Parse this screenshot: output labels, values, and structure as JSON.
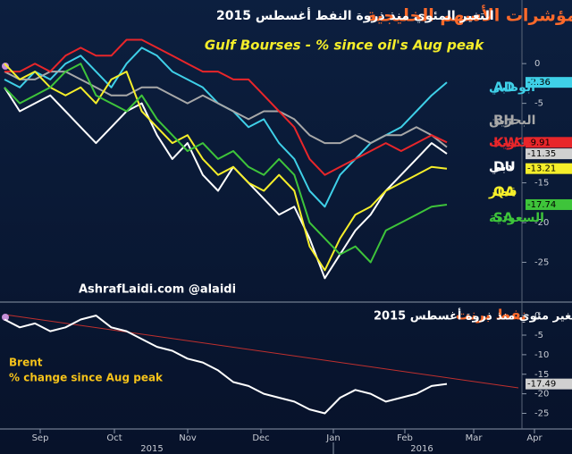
{
  "chart_data": [
    {
      "type": "line",
      "title_highlight": "مؤشرات الأسهم الخليجية",
      "title": "التغير المئوي منذ ذروة النفط أغسطس 2015",
      "subtitle": "Gulf Bourses - % since oil's Aug peak",
      "watermark": "AshrafLaidi.com  @alaidi",
      "ylim": [
        -30,
        8
      ],
      "yticks": [
        0,
        -5,
        -10,
        -15,
        -20,
        -25
      ],
      "grid": false,
      "series": [
        {
          "name": "AD",
          "name_ar": "أبوظبي",
          "color": "#3fd0e8",
          "values": [
            -2,
            -3,
            -1,
            -2,
            0,
            1,
            -1,
            -3,
            0,
            2,
            1,
            -1,
            -2,
            -3,
            -5,
            -6,
            -8,
            -7,
            -10,
            -12,
            -16,
            -18,
            -14,
            -12,
            -10,
            -9,
            -8,
            -6,
            -4,
            -2.36
          ],
          "value_labels": [
            null,
            null,
            null,
            null,
            null,
            null,
            null,
            null,
            null,
            null,
            null,
            null,
            null,
            null,
            null,
            null,
            null,
            null,
            null,
            null,
            null,
            null,
            null,
            null,
            null,
            null,
            null,
            null,
            null,
            "-2.36"
          ]
        },
        {
          "name": "BH",
          "name_ar": "البحرين",
          "color": "#a8a8a8",
          "values": [
            -1,
            -2,
            -2,
            -1,
            -1,
            -2,
            -3,
            -4,
            -4,
            -3,
            -3,
            -4,
            -5,
            -4,
            -5,
            -6,
            -7,
            -6,
            -6,
            -7,
            -9,
            -10,
            -10,
            -9,
            -10,
            -9,
            -9,
            -8,
            -9,
            -10.5
          ]
        },
        {
          "name": "KW",
          "name_ar": "الكويت",
          "color": "#e8262a",
          "values": [
            -1,
            -1,
            0,
            -1,
            1,
            2,
            1,
            1,
            3,
            3,
            2,
            1,
            0,
            -1,
            -1,
            -2,
            -2,
            -4,
            -6,
            -8,
            -12,
            -14,
            -13,
            -12,
            -11,
            -10,
            -11,
            -10,
            -9,
            -9.91
          ],
          "value_labels": [
            null,
            null,
            null,
            null,
            null,
            null,
            null,
            null,
            null,
            null,
            null,
            null,
            null,
            null,
            null,
            null,
            null,
            null,
            null,
            null,
            null,
            null,
            null,
            null,
            null,
            null,
            null,
            null,
            null,
            "-9.91"
          ]
        },
        {
          "name": "DU",
          "name_ar": "دبي",
          "color": "#ffffff",
          "values": [
            -3,
            -6,
            -5,
            -4,
            -6,
            -8,
            -10,
            -8,
            -6,
            -5,
            -9,
            -12,
            -10,
            -14,
            -16,
            -13,
            -15,
            -17,
            -19,
            -18,
            -22,
            -27,
            -24,
            -21,
            -19,
            -16,
            -14,
            -12,
            -10,
            -11.35
          ],
          "value_labels": [
            null,
            null,
            null,
            null,
            null,
            null,
            null,
            null,
            null,
            null,
            null,
            null,
            null,
            null,
            null,
            null,
            null,
            null,
            null,
            null,
            null,
            null,
            null,
            null,
            null,
            null,
            null,
            null,
            null,
            "-11.35"
          ]
        },
        {
          "name": "QA",
          "name_ar": "قطر",
          "color": "#f5ee2a",
          "values": [
            0,
            -2,
            -1,
            -3,
            -4,
            -3,
            -5,
            -2,
            -1,
            -6,
            -8,
            -10,
            -9,
            -12,
            -14,
            -13,
            -15,
            -16,
            -14,
            -16,
            -23,
            -26,
            -22,
            -19,
            -18,
            -16,
            -15,
            -14,
            -13,
            -13.21
          ],
          "value_labels": [
            null,
            null,
            null,
            null,
            null,
            null,
            null,
            null,
            null,
            null,
            null,
            null,
            null,
            null,
            null,
            null,
            null,
            null,
            null,
            null,
            null,
            null,
            null,
            null,
            null,
            null,
            null,
            null,
            null,
            "-13.21"
          ]
        },
        {
          "name": "SA",
          "name_ar": "السعودية",
          "color": "#3ec43a",
          "values": [
            -3,
            -5,
            -4,
            -3,
            -1,
            0,
            -4,
            -5,
            -6,
            -4,
            -7,
            -9,
            -11,
            -10,
            -12,
            -11,
            -13,
            -14,
            -12,
            -14,
            -20,
            -22,
            -24,
            -23,
            -25,
            -21,
            -20,
            -19,
            -18,
            -17.74
          ],
          "value_labels": [
            null,
            null,
            null,
            null,
            null,
            null,
            null,
            null,
            null,
            null,
            null,
            null,
            null,
            null,
            null,
            null,
            null,
            null,
            null,
            null,
            null,
            null,
            null,
            null,
            null,
            null,
            null,
            null,
            null,
            "-17.74"
          ]
        }
      ]
    },
    {
      "type": "line",
      "title_highlight": "نفط برنت",
      "title": "- تغير مئوي منذ ذروة أغسطس 2015",
      "label_1": "Brent",
      "label_2": "% change since Aug peak",
      "ylim": [
        -29,
        3
      ],
      "yticks": [
        0,
        -5,
        -10,
        -15,
        -20,
        -25
      ],
      "grid": false,
      "months": [
        "Sep",
        "Oct",
        "Nov",
        "Dec",
        "Jan",
        "Feb",
        "Mar",
        "Apr"
      ],
      "years": [
        "2015",
        "2016"
      ],
      "series": [
        {
          "name": "Brent",
          "color": "#ffffff",
          "values": [
            -1,
            -3,
            -2,
            -4,
            -3,
            -1,
            0,
            -3,
            -4,
            -6,
            -8,
            -9,
            -11,
            -12,
            -14,
            -17,
            -18,
            -20,
            -21,
            -22,
            -24,
            -25,
            -21,
            -19,
            -20,
            -22,
            -21,
            -20,
            -18,
            -17.49
          ],
          "value_labels": [
            null,
            null,
            null,
            null,
            null,
            null,
            null,
            null,
            null,
            null,
            null,
            null,
            null,
            null,
            null,
            null,
            null,
            null,
            null,
            null,
            null,
            null,
            null,
            null,
            null,
            null,
            null,
            null,
            null,
            "-17.49"
          ]
        }
      ]
    }
  ]
}
